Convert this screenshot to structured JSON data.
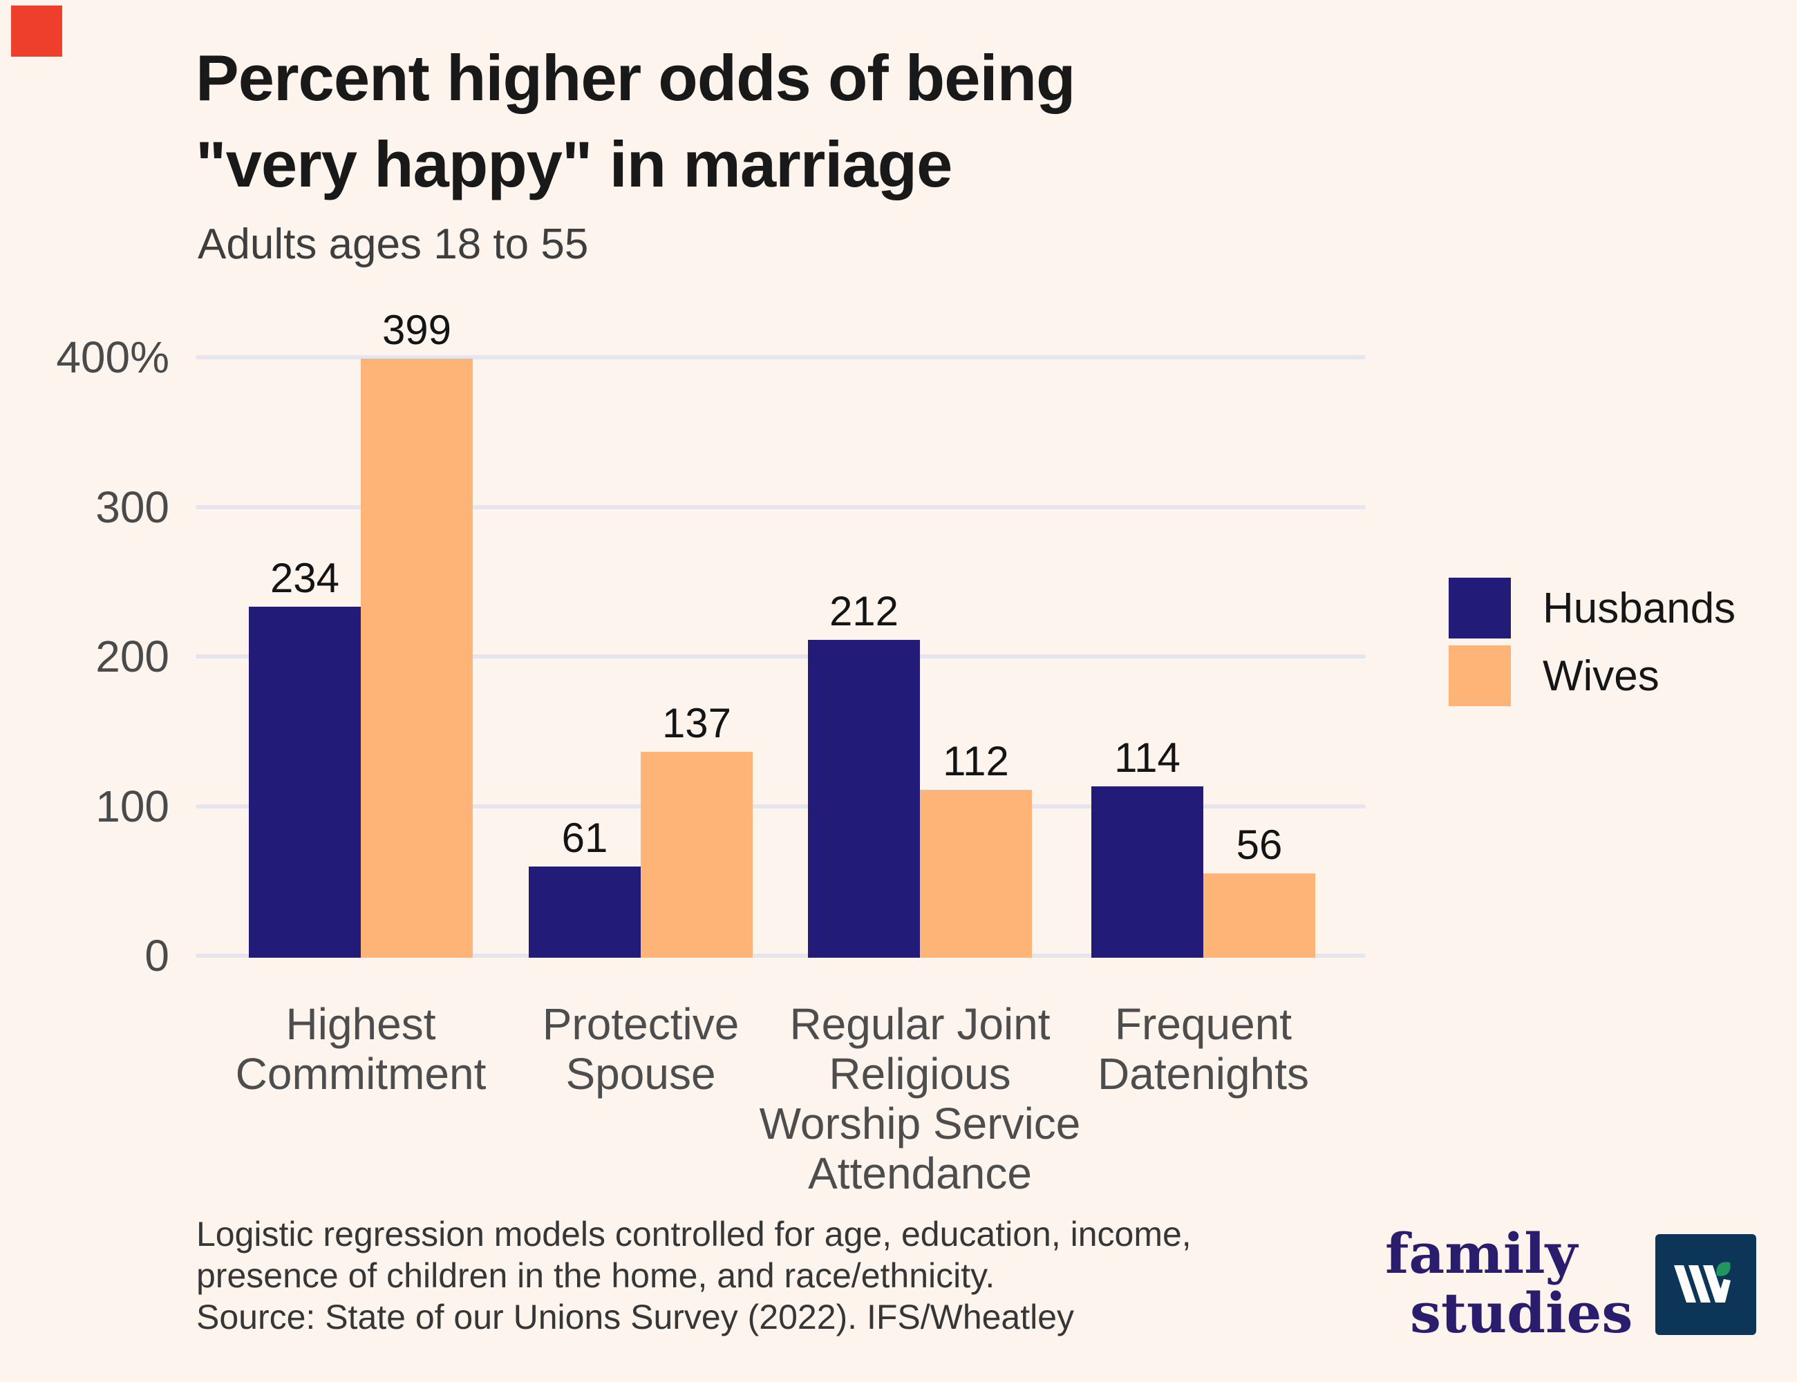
{
  "marker": {
    "color": "#ee3f2c"
  },
  "title": {
    "line1": "Percent higher odds of being",
    "line2": "\"very happy\" in marriage"
  },
  "subtitle": "Adults ages 18 to 55",
  "chart_data": {
    "type": "bar",
    "title": "Percent higher odds of being \"very happy\" in marriage",
    "subtitle": "Adults ages 18 to 55",
    "categories": [
      "Highest Commitment",
      "Protective Spouse",
      "Regular Joint Religious Worship Service Attendance",
      "Frequent Datenights"
    ],
    "category_label_lines": [
      [
        "Highest",
        "Commitment"
      ],
      [
        "Protective",
        "Spouse"
      ],
      [
        "Regular Joint",
        "Religious",
        "Worship Service",
        "Attendance"
      ],
      [
        "Frequent",
        "Datenights"
      ]
    ],
    "series": [
      {
        "name": "Husbands",
        "color": "#231b78",
        "values": [
          234,
          61,
          212,
          114
        ]
      },
      {
        "name": "Wives",
        "color": "#fdb476",
        "values": [
          399,
          137,
          112,
          56
        ]
      }
    ],
    "ylim": [
      0,
      400
    ],
    "yticks": [
      {
        "value": 400,
        "label": "400%"
      },
      {
        "value": 300,
        "label": "300"
      },
      {
        "value": 200,
        "label": "200"
      },
      {
        "value": 100,
        "label": "100"
      },
      {
        "value": 0,
        "label": "0"
      }
    ],
    "grid": true,
    "gridline_color": "#e6e4ec",
    "value_labels": true,
    "legend_position": "right"
  },
  "footnote": {
    "lines": [
      "Logistic regression models controlled for age, education, income,",
      "presence of children in the home, and race/ethnicity.",
      "Source: State of our Unions Survey (2022). IFS/Wheatley"
    ]
  },
  "branding": {
    "wordmark_line1": "family",
    "wordmark_line2": "studies",
    "wordmark_color": "#2a1d6e",
    "logo_bg": "#0d3557",
    "logo_mark": "ifs-w-leaf-icon",
    "leaf_color": "#21975f",
    "mark_color": "#ffffff"
  },
  "page": {
    "background": "#fdf4ed"
  }
}
